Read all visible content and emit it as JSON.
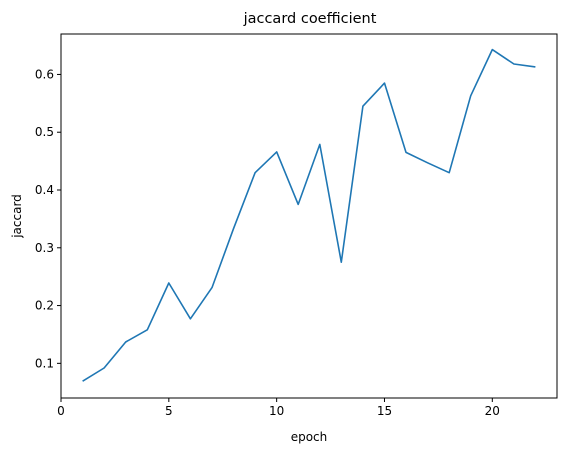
{
  "chart_data": {
    "type": "line",
    "title": "jaccard coefficient",
    "xlabel": "epoch",
    "ylabel": "jaccard",
    "xlim": [
      0,
      23
    ],
    "ylim": [
      0.04,
      0.67
    ],
    "xticks": [
      0,
      5,
      10,
      15,
      20
    ],
    "yticks": [
      0.1,
      0.2,
      0.3,
      0.4,
      0.5,
      0.6
    ],
    "grid": false,
    "series": [
      {
        "color": "#1f77b4",
        "x": [
          1,
          2,
          3,
          4,
          5,
          6,
          7,
          8,
          9,
          10,
          11,
          12,
          13,
          14,
          15,
          16,
          17,
          18,
          19,
          20,
          21,
          22
        ],
        "y": [
          0.069,
          0.092,
          0.137,
          0.158,
          0.239,
          0.177,
          0.231,
          0.333,
          0.43,
          0.466,
          0.375,
          0.479,
          0.275,
          0.545,
          0.585,
          0.465,
          0.447,
          0.43,
          0.563,
          0.643,
          0.618,
          0.613
        ]
      }
    ]
  }
}
